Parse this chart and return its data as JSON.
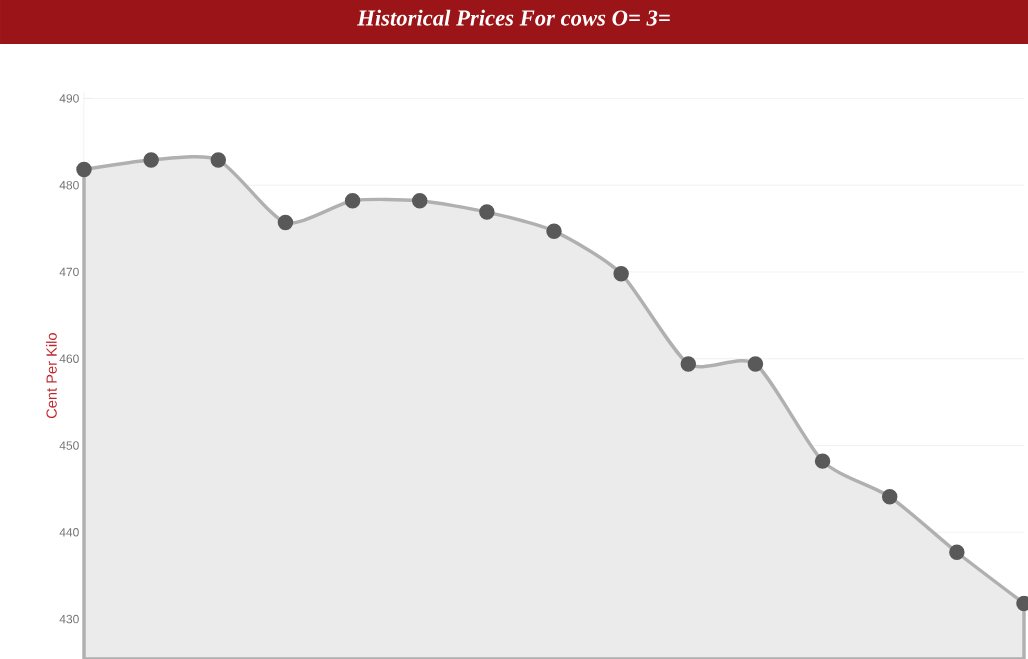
{
  "chart_data": {
    "type": "area",
    "title": "Historical Prices For cows O= 3=",
    "ylabel": "Cent Per Kilo",
    "categories": [
      null,
      null,
      null,
      null,
      null,
      null,
      null,
      null,
      null,
      null,
      null,
      null,
      null,
      null,
      null
    ],
    "values": [
      481.8,
      482.9,
      482.9,
      475.7,
      478.2,
      478.2,
      476.9,
      474.7,
      469.8,
      459.4,
      459.4,
      448.2,
      444.1,
      437.7,
      431.8
    ],
    "color": "#ebebeb",
    "marker": "circle",
    "grid": "y",
    "ylim": [
      425.4,
      490.7
    ],
    "yticks": [
      430,
      440,
      450,
      460,
      470,
      480,
      490
    ]
  }
}
